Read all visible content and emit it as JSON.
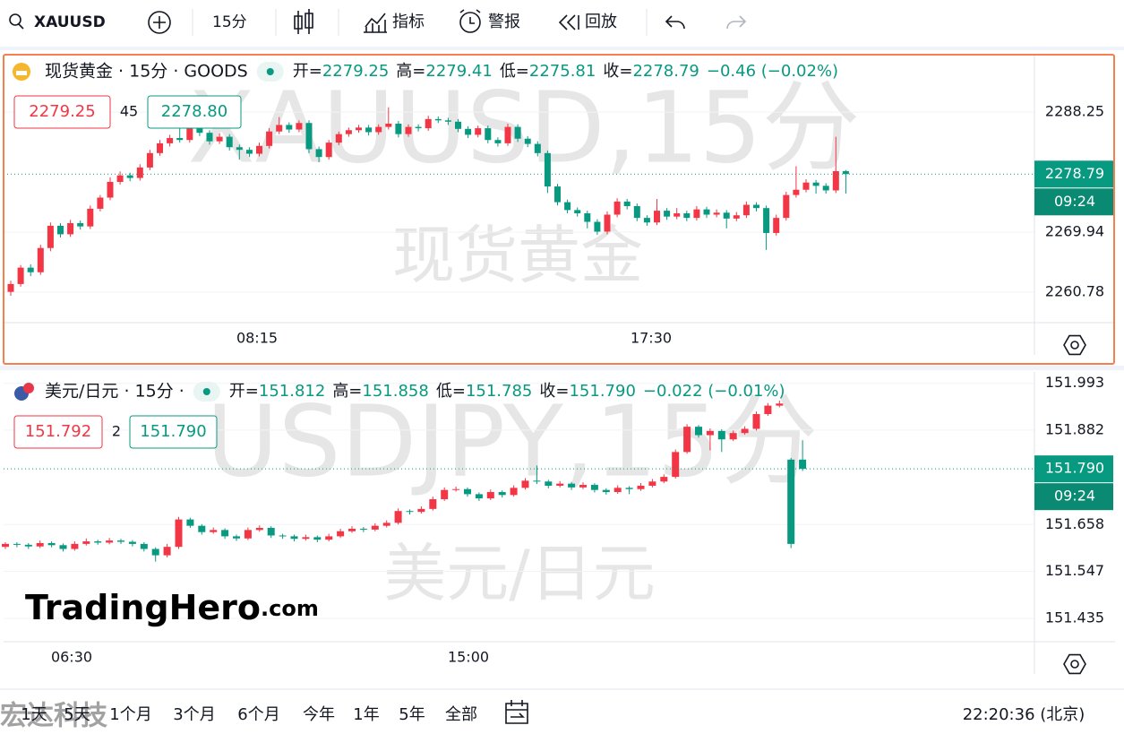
{
  "toolbar": {
    "symbol": "XAUUSD",
    "interval": "15分",
    "buttons": [
      "指标",
      "警报",
      "回放"
    ]
  },
  "panels": [
    {
      "title": "现货黄金 · 15分 · GOODS",
      "ohlc": [
        {
          "label": "开=",
          "value": "2279.25"
        },
        {
          "label": "高=",
          "value": "2279.41"
        },
        {
          "label": "低=",
          "value": "2275.81"
        },
        {
          "label": "收=",
          "value": "2278.79"
        }
      ],
      "change": "−0.46 (−0.02%)",
      "bid": "2279.25",
      "spread": "45",
      "ask": "2278.80",
      "watermark": "XAUUSD,15分",
      "watermark_sub": "现货黄金",
      "last": "2278.79",
      "countdown": "09:24",
      "ylim": [
        2256.1,
        2296.9
      ],
      "yticks": [
        2288.25,
        2269.94,
        2260.78
      ],
      "xticks": [
        "08:15",
        "17:30"
      ],
      "candles": [
        [
          2260.8,
          2262.5,
          2260.2,
          2262.0
        ],
        [
          2262.0,
          2264.9,
          2261.6,
          2264.5
        ],
        [
          2264.5,
          2265.0,
          2263.2,
          2263.8
        ],
        [
          2263.8,
          2268.0,
          2263.4,
          2267.5
        ],
        [
          2267.5,
          2271.4,
          2267.0,
          2270.9
        ],
        [
          2270.9,
          2271.3,
          2269.1,
          2269.6
        ],
        [
          2269.6,
          2271.8,
          2269.2,
          2271.3
        ],
        [
          2271.3,
          2271.7,
          2270.3,
          2270.8
        ],
        [
          2270.8,
          2274.0,
          2270.4,
          2273.5
        ],
        [
          2273.5,
          2275.6,
          2273.1,
          2275.2
        ],
        [
          2275.2,
          2278.3,
          2274.8,
          2277.6
        ],
        [
          2277.6,
          2279.2,
          2277.2,
          2278.6
        ],
        [
          2278.6,
          2279.0,
          2277.7,
          2278.2
        ],
        [
          2278.2,
          2280.3,
          2277.8,
          2279.8
        ],
        [
          2279.8,
          2282.5,
          2279.4,
          2282.0
        ],
        [
          2282.0,
          2284.0,
          2281.6,
          2283.5
        ],
        [
          2283.5,
          2284.8,
          2283.0,
          2284.3
        ],
        [
          2284.3,
          2287.0,
          2283.6,
          2284.0
        ],
        [
          2284.0,
          2286.5,
          2283.6,
          2286.0
        ],
        [
          2286.0,
          2286.4,
          2284.6,
          2285.1
        ],
        [
          2285.1,
          2285.5,
          2283.3,
          2283.8
        ],
        [
          2283.8,
          2285.0,
          2283.4,
          2284.5
        ],
        [
          2284.5,
          2284.9,
          2282.4,
          2282.9
        ],
        [
          2282.9,
          2283.3,
          2281.0,
          2282.5
        ],
        [
          2282.5,
          2282.9,
          2281.4,
          2281.9
        ],
        [
          2281.9,
          2283.6,
          2281.5,
          2283.1
        ],
        [
          2283.1,
          2285.8,
          2282.7,
          2285.3
        ],
        [
          2285.3,
          2287.5,
          2284.9,
          2286.3
        ],
        [
          2286.3,
          2286.7,
          2285.1,
          2285.6
        ],
        [
          2285.6,
          2287.0,
          2285.2,
          2286.6
        ],
        [
          2286.6,
          2287.0,
          2282.0,
          2282.6
        ],
        [
          2282.6,
          2283.0,
          2280.6,
          2281.4
        ],
        [
          2281.4,
          2284.0,
          2281.0,
          2283.6
        ],
        [
          2283.6,
          2285.3,
          2283.2,
          2284.9
        ],
        [
          2284.9,
          2285.9,
          2284.5,
          2285.5
        ],
        [
          2285.5,
          2286.3,
          2285.1,
          2285.9
        ],
        [
          2285.9,
          2286.3,
          2284.7,
          2285.2
        ],
        [
          2285.2,
          2286.4,
          2284.8,
          2286.0
        ],
        [
          2286.0,
          2289.0,
          2285.6,
          2286.5
        ],
        [
          2286.5,
          2286.9,
          2284.4,
          2284.9
        ],
        [
          2284.9,
          2286.4,
          2284.5,
          2286.0
        ],
        [
          2286.0,
          2286.4,
          2285.3,
          2285.8
        ],
        [
          2285.8,
          2287.7,
          2285.4,
          2287.2
        ],
        [
          2287.2,
          2287.6,
          2286.6,
          2287.0
        ],
        [
          2287.0,
          2287.4,
          2286.3,
          2286.8
        ],
        [
          2286.8,
          2287.2,
          2285.2,
          2285.7
        ],
        [
          2285.7,
          2286.1,
          2284.3,
          2284.8
        ],
        [
          2284.8,
          2286.2,
          2284.4,
          2285.8
        ],
        [
          2285.8,
          2286.2,
          2283.5,
          2284.0
        ],
        [
          2284.0,
          2284.4,
          2283.0,
          2283.5
        ],
        [
          2283.5,
          2286.5,
          2283.1,
          2286.0
        ],
        [
          2286.0,
          2286.4,
          2283.7,
          2284.2
        ],
        [
          2284.2,
          2284.6,
          2282.9,
          2283.4
        ],
        [
          2283.4,
          2283.8,
          2281.5,
          2282.0
        ],
        [
          2282.0,
          2282.4,
          2275.9,
          2276.9
        ],
        [
          2276.9,
          2277.3,
          2274.0,
          2274.5
        ],
        [
          2274.5,
          2274.9,
          2272.8,
          2273.3
        ],
        [
          2273.3,
          2273.7,
          2272.3,
          2272.8
        ],
        [
          2272.8,
          2273.2,
          2270.5,
          2271.5
        ],
        [
          2271.5,
          2271.9,
          2269.5,
          2270.0
        ],
        [
          2270.0,
          2273.1,
          2269.6,
          2272.6
        ],
        [
          2272.6,
          2275.1,
          2272.2,
          2274.6
        ],
        [
          2274.6,
          2275.0,
          2273.4,
          2273.9
        ],
        [
          2273.9,
          2274.3,
          2271.6,
          2272.1
        ],
        [
          2272.1,
          2272.5,
          2270.9,
          2271.4
        ],
        [
          2271.4,
          2275.0,
          2271.0,
          2273.2
        ],
        [
          2273.2,
          2273.6,
          2271.8,
          2272.3
        ],
        [
          2272.3,
          2273.6,
          2271.9,
          2272.8
        ],
        [
          2272.8,
          2273.2,
          2271.6,
          2272.1
        ],
        [
          2272.1,
          2273.9,
          2271.7,
          2273.4
        ],
        [
          2273.4,
          2273.8,
          2272.1,
          2272.6
        ],
        [
          2272.6,
          2273.4,
          2272.2,
          2272.9
        ],
        [
          2272.9,
          2273.3,
          2270.5,
          2272.0
        ],
        [
          2272.0,
          2273.0,
          2271.6,
          2272.5
        ],
        [
          2272.5,
          2274.6,
          2272.1,
          2274.1
        ],
        [
          2274.1,
          2274.5,
          2273.1,
          2273.6
        ],
        [
          2273.6,
          2274.0,
          2267.2,
          2269.8
        ],
        [
          2269.8,
          2272.6,
          2269.4,
          2272.1
        ],
        [
          2272.1,
          2276.1,
          2271.7,
          2275.6
        ],
        [
          2275.6,
          2280.0,
          2275.2,
          2276.4
        ],
        [
          2276.4,
          2278.0,
          2276.0,
          2277.5
        ],
        [
          2277.5,
          2277.9,
          2275.8,
          2277.0
        ],
        [
          2277.0,
          2277.4,
          2275.8,
          2276.3
        ],
        [
          2276.3,
          2284.5,
          2275.9,
          2279.25
        ],
        [
          2279.25,
          2279.41,
          2275.81,
          2278.79
        ]
      ]
    },
    {
      "title": "美元/日元 · 15分 ·",
      "ohlc": [
        {
          "label": "开=",
          "value": "151.812"
        },
        {
          "label": "高=",
          "value": "151.858"
        },
        {
          "label": "低=",
          "value": "151.785"
        },
        {
          "label": "收=",
          "value": "151.790"
        }
      ],
      "change": "−0.022 (−0.01%)",
      "bid": "151.792",
      "spread": "2",
      "ask": "151.790",
      "watermark": "USDJPY,15分",
      "watermark_sub": "美元/日元",
      "last": "151.790",
      "countdown": "09:24",
      "ylim": [
        151.38,
        152.02
      ],
      "yticks": [
        151.993,
        151.882,
        151.658,
        151.547,
        151.435
      ],
      "xticks": [
        "06:30",
        "15:00"
      ],
      "candles": [
        [
          151.605,
          151.616,
          151.6,
          151.612
        ],
        [
          151.612,
          151.616,
          151.604,
          151.61
        ],
        [
          151.61,
          151.614,
          151.6,
          151.606
        ],
        [
          151.606,
          151.62,
          151.602,
          151.614
        ],
        [
          151.614,
          151.618,
          151.604,
          151.609
        ],
        [
          151.609,
          151.613,
          151.594,
          151.6
        ],
        [
          151.6,
          151.618,
          151.596,
          151.612
        ],
        [
          151.612,
          151.625,
          151.608,
          151.618
        ],
        [
          151.618,
          151.622,
          151.61,
          151.615
        ],
        [
          151.615,
          151.626,
          151.611,
          151.62
        ],
        [
          151.62,
          151.624,
          151.612,
          151.617
        ],
        [
          151.617,
          151.621,
          151.606,
          151.612
        ],
        [
          151.612,
          151.616,
          151.594,
          151.6
        ],
        [
          151.6,
          151.604,
          151.57,
          151.585
        ],
        [
          151.585,
          151.612,
          151.58,
          151.605
        ],
        [
          151.605,
          151.676,
          151.6,
          151.67
        ],
        [
          151.67,
          151.674,
          151.65,
          151.655
        ],
        [
          151.655,
          151.659,
          151.634,
          151.64
        ],
        [
          151.64,
          151.651,
          151.636,
          151.645
        ],
        [
          151.645,
          151.649,
          151.624,
          151.63
        ],
        [
          151.63,
          151.634,
          151.619,
          151.625
        ],
        [
          151.625,
          151.651,
          151.621,
          151.645
        ],
        [
          151.645,
          151.656,
          151.641,
          151.65
        ],
        [
          151.65,
          151.654,
          151.626,
          151.632
        ],
        [
          151.632,
          151.636,
          151.624,
          151.63
        ],
        [
          151.63,
          151.634,
          151.618,
          151.624
        ],
        [
          151.624,
          151.634,
          151.62,
          151.628
        ],
        [
          151.628,
          151.632,
          151.616,
          151.622
        ],
        [
          151.622,
          151.636,
          151.618,
          151.63
        ],
        [
          151.63,
          151.648,
          151.626,
          151.642
        ],
        [
          151.642,
          151.654,
          151.638,
          151.648
        ],
        [
          151.648,
          151.652,
          151.64,
          151.646
        ],
        [
          151.646,
          151.661,
          151.642,
          151.655
        ],
        [
          151.655,
          151.668,
          151.651,
          151.662
        ],
        [
          151.662,
          151.696,
          151.658,
          151.69
        ],
        [
          151.69,
          151.694,
          151.682,
          151.688
        ],
        [
          151.688,
          151.701,
          151.684,
          151.695
        ],
        [
          151.695,
          151.724,
          151.691,
          151.718
        ],
        [
          151.718,
          151.746,
          151.714,
          151.74
        ],
        [
          151.74,
          151.748,
          151.736,
          151.742
        ],
        [
          151.742,
          151.746,
          151.724,
          151.73
        ],
        [
          151.73,
          151.734,
          151.714,
          151.72
        ],
        [
          151.72,
          151.741,
          151.716,
          151.735
        ],
        [
          151.735,
          151.739,
          151.722,
          151.728
        ],
        [
          151.728,
          151.751,
          151.724,
          151.745
        ],
        [
          151.745,
          151.768,
          151.741,
          151.762
        ],
        [
          151.762,
          151.798,
          151.754,
          151.76
        ],
        [
          151.76,
          151.764,
          151.744,
          151.75
        ],
        [
          151.75,
          151.761,
          151.746,
          151.755
        ],
        [
          151.755,
          151.759,
          151.74,
          151.746
        ],
        [
          151.746,
          151.758,
          151.742,
          151.752
        ],
        [
          151.752,
          151.756,
          151.734,
          151.74
        ],
        [
          151.74,
          151.744,
          151.729,
          151.735
        ],
        [
          151.735,
          151.751,
          151.731,
          151.745
        ],
        [
          151.745,
          151.749,
          151.73,
          151.742
        ],
        [
          151.742,
          151.756,
          151.738,
          151.75
        ],
        [
          151.75,
          151.766,
          151.746,
          151.76
        ],
        [
          151.76,
          151.777,
          151.756,
          151.771
        ],
        [
          151.771,
          151.836,
          151.767,
          151.83
        ],
        [
          151.83,
          151.896,
          151.826,
          151.89
        ],
        [
          151.89,
          151.894,
          151.864,
          151.87
        ],
        [
          151.87,
          151.886,
          151.834,
          151.88
        ],
        [
          151.88,
          151.884,
          151.83,
          151.86
        ],
        [
          151.86,
          151.881,
          151.856,
          151.875
        ],
        [
          151.875,
          151.891,
          151.871,
          151.885
        ],
        [
          151.885,
          151.926,
          151.881,
          151.92
        ],
        [
          151.92,
          151.946,
          151.916,
          151.94
        ],
        [
          151.94,
          151.952,
          151.936,
          151.945
        ],
        [
          151.812,
          151.816,
          151.602,
          151.612
        ],
        [
          151.812,
          151.858,
          151.785,
          151.79
        ]
      ]
    }
  ],
  "logo": [
    "TradingHero",
    ".com"
  ],
  "watermark": "宏达科技",
  "ranges": [
    "1天",
    "5天",
    "1个月",
    "3个月",
    "6个月",
    "今年",
    "1年",
    "5年",
    "全部"
  ],
  "clock": "22:20:36 (北京)"
}
